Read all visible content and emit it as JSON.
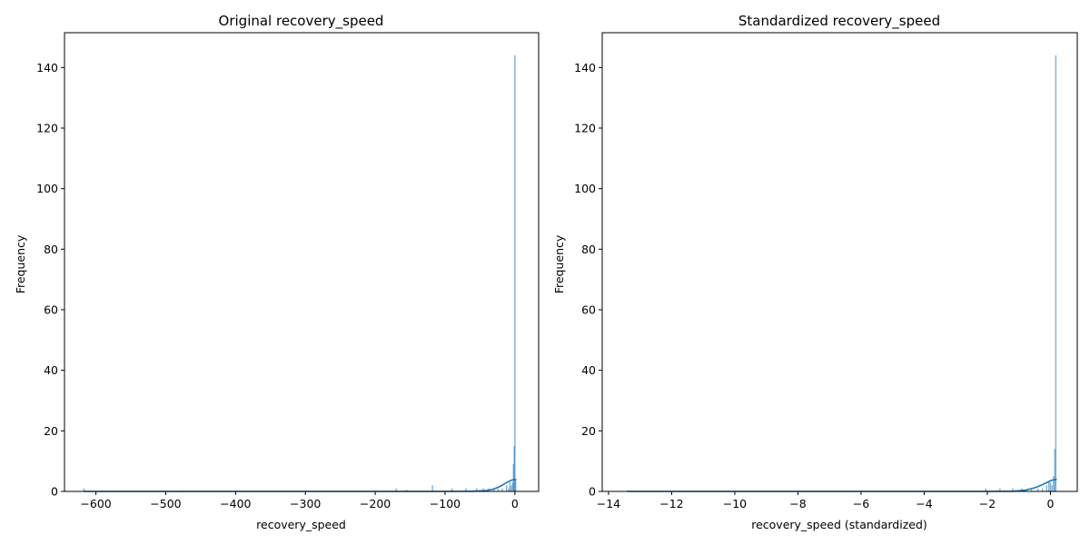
{
  "chart_data": [
    {
      "type": "histogram",
      "title": "Original recovery_speed",
      "xlabel": "recovery_speed",
      "ylabel": "Frequency",
      "xlim": [
        -645,
        34
      ],
      "ylim": [
        0,
        151.5
      ],
      "xticks": [
        -600,
        -500,
        -400,
        -300,
        -200,
        -100,
        0
      ],
      "xtick_labels": [
        "−600",
        "−500",
        "−400",
        "−300",
        "−200",
        "−100",
        "0"
      ],
      "yticks": [
        0,
        20,
        40,
        60,
        80,
        100,
        120,
        140
      ],
      "ytick_labels": [
        "0",
        "20",
        "40",
        "60",
        "80",
        "100",
        "120",
        "140"
      ],
      "color": "#1f77b4",
      "bars": [
        {
          "x": -617,
          "count": 1
        },
        {
          "x": -475,
          "count": 0.3
        },
        {
          "x": -170,
          "count": 1
        },
        {
          "x": -155,
          "count": 0.5
        },
        {
          "x": -118,
          "count": 2
        },
        {
          "x": -90,
          "count": 1
        },
        {
          "x": -70,
          "count": 1
        },
        {
          "x": -55,
          "count": 1
        },
        {
          "x": -45,
          "count": 1
        },
        {
          "x": -38,
          "count": 1
        },
        {
          "x": -30,
          "count": 1
        },
        {
          "x": -24,
          "count": 1
        },
        {
          "x": -18,
          "count": 1
        },
        {
          "x": -12,
          "count": 2
        },
        {
          "x": -9,
          "count": 1
        },
        {
          "x": -7,
          "count": 3
        },
        {
          "x": -5,
          "count": 2
        },
        {
          "x": -3,
          "count": 3
        },
        {
          "x": -2,
          "count": 9
        },
        {
          "x": -1,
          "count": 15
        },
        {
          "x": 0,
          "count": 144
        },
        {
          "x": 1,
          "count": 4
        }
      ],
      "kde": [
        [
          -617,
          0
        ],
        [
          -300,
          0
        ],
        [
          -100,
          0
        ],
        [
          -60,
          0.05
        ],
        [
          -40,
          0.3
        ],
        [
          -30,
          0.8
        ],
        [
          -20,
          1.8
        ],
        [
          -12,
          2.9
        ],
        [
          -6,
          3.6
        ],
        [
          -2,
          3.9
        ],
        [
          0,
          3.95
        ],
        [
          2,
          3.9
        ]
      ]
    },
    {
      "type": "histogram",
      "title": "Standardized recovery_speed",
      "xlabel": "recovery_speed (standardized)",
      "ylabel": "Frequency",
      "xlim": [
        -14.2,
        0.85
      ],
      "ylim": [
        0,
        151.5
      ],
      "xticks": [
        -14,
        -12,
        -10,
        -8,
        -6,
        -4,
        -2,
        0
      ],
      "xtick_labels": [
        "−14",
        "−12",
        "−10",
        "−8",
        "−6",
        "−4",
        "−2",
        "0"
      ],
      "yticks": [
        0,
        20,
        40,
        60,
        80,
        100,
        120,
        140
      ],
      "ytick_labels": [
        "0",
        "20",
        "40",
        "60",
        "80",
        "100",
        "120",
        "140"
      ],
      "color": "#1f77b4",
      "bars": [
        {
          "x": -13.4,
          "count": 0.3
        },
        {
          "x": -2.05,
          "count": 1
        },
        {
          "x": -1.6,
          "count": 1
        },
        {
          "x": -1.2,
          "count": 1
        },
        {
          "x": -0.9,
          "count": 1
        },
        {
          "x": -0.6,
          "count": 1
        },
        {
          "x": -0.4,
          "count": 1
        },
        {
          "x": -0.25,
          "count": 1
        },
        {
          "x": -0.12,
          "count": 2
        },
        {
          "x": -0.05,
          "count": 3
        },
        {
          "x": 0.0,
          "count": 3
        },
        {
          "x": 0.05,
          "count": 2
        },
        {
          "x": 0.1,
          "count": 5
        },
        {
          "x": 0.14,
          "count": 14
        },
        {
          "x": 0.17,
          "count": 144
        }
      ],
      "kde": [
        [
          -13.4,
          0
        ],
        [
          -6,
          0
        ],
        [
          -2,
          0
        ],
        [
          -1.2,
          0.05
        ],
        [
          -0.8,
          0.4
        ],
        [
          -0.5,
          1.2
        ],
        [
          -0.3,
          2.0
        ],
        [
          -0.1,
          3.0
        ],
        [
          0.0,
          3.5
        ],
        [
          0.1,
          3.85
        ],
        [
          0.2,
          3.95
        ]
      ]
    }
  ]
}
